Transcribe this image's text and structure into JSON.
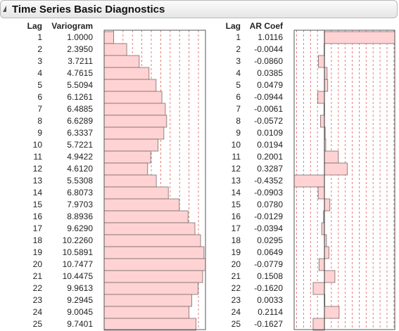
{
  "window": {
    "title": "Time Series Basic Diagnostics"
  },
  "icons": {
    "disclosure": "disclosure-triangle-icon"
  },
  "colors": {
    "bar_fill": "#ffd3d3",
    "bar_stroke": "#7a6a6a",
    "grid_dash": "#e25b5b",
    "frame": "#555555"
  },
  "variogram_table": {
    "lag_header": "Lag",
    "value_header": "Variogram",
    "lags": [
      "1",
      "2",
      "3",
      "4",
      "5",
      "6",
      "7",
      "8",
      "9",
      "10",
      "11",
      "12",
      "13",
      "14",
      "15",
      "16",
      "17",
      "18",
      "19",
      "20",
      "21",
      "22",
      "23",
      "24",
      "25"
    ],
    "values": [
      "1.0000",
      "2.3950",
      "3.7211",
      "4.7615",
      "5.5094",
      "6.1261",
      "6.4885",
      "6.6289",
      "6.3337",
      "5.7221",
      "4.9422",
      "4.6120",
      "5.5308",
      "6.8073",
      "7.9703",
      "8.8936",
      "9.6290",
      "10.2260",
      "10.5891",
      "10.7477",
      "10.4475",
      "9.9613",
      "9.2945",
      "9.0045",
      "9.7401"
    ]
  },
  "ar_table": {
    "lag_header": "Lag",
    "value_header": "AR Coef",
    "lags": [
      "1",
      "2",
      "3",
      "4",
      "5",
      "6",
      "7",
      "8",
      "9",
      "10",
      "11",
      "12",
      "13",
      "14",
      "15",
      "16",
      "17",
      "18",
      "19",
      "20",
      "21",
      "22",
      "23",
      "24",
      "25"
    ],
    "values": [
      "1.0116",
      "-0.0044",
      "-0.0860",
      "0.0385",
      "0.0479",
      "-0.0944",
      "-0.0061",
      "-0.0572",
      "0.0109",
      "0.0194",
      "0.2001",
      "0.3287",
      "-0.4352",
      "-0.0903",
      "0.0780",
      "-0.0129",
      "-0.0394",
      "0.0295",
      "0.0649",
      "-0.0779",
      "0.1508",
      "-0.1620",
      "0.0033",
      "0.2114",
      "-0.1627"
    ]
  },
  "chart_data": [
    {
      "type": "bar",
      "orientation": "horizontal",
      "categories": [
        1,
        2,
        3,
        4,
        5,
        6,
        7,
        8,
        9,
        10,
        11,
        12,
        13,
        14,
        15,
        16,
        17,
        18,
        19,
        20,
        21,
        22,
        23,
        24,
        25
      ],
      "values": [
        1.0,
        2.395,
        3.7211,
        4.7615,
        5.5094,
        6.1261,
        6.4885,
        6.6289,
        6.3337,
        5.7221,
        4.9422,
        4.612,
        5.5308,
        6.8073,
        7.9703,
        8.8936,
        9.629,
        10.226,
        10.5891,
        10.7477,
        10.4475,
        9.9613,
        9.2945,
        9.0045,
        9.7401
      ],
      "xlim": [
        0,
        10.7477
      ],
      "grid": true
    },
    {
      "type": "bar",
      "orientation": "horizontal",
      "categories": [
        1,
        2,
        3,
        4,
        5,
        6,
        7,
        8,
        9,
        10,
        11,
        12,
        13,
        14,
        15,
        16,
        17,
        18,
        19,
        20,
        21,
        22,
        23,
        24,
        25
      ],
      "values": [
        1.0116,
        -0.0044,
        -0.086,
        0.0385,
        0.0479,
        -0.0944,
        -0.0061,
        -0.0572,
        0.0109,
        0.0194,
        0.2001,
        0.3287,
        -0.4352,
        -0.0903,
        0.078,
        -0.0129,
        -0.0394,
        0.0295,
        0.0649,
        -0.0779,
        0.1508,
        -0.162,
        0.0033,
        0.2114,
        -0.1627
      ],
      "xlim": [
        -0.4352,
        1.0116
      ],
      "grid": true
    }
  ]
}
